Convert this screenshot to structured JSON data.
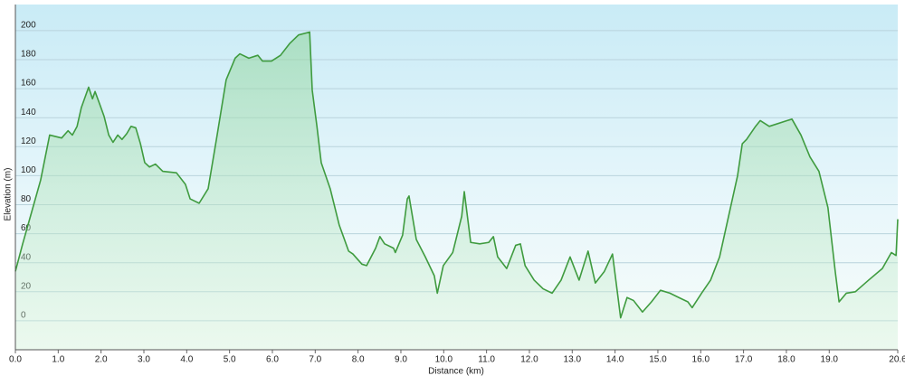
{
  "chart_data": {
    "type": "area",
    "x_label": "Distance  (km)",
    "y_label": "Elevation (m)",
    "color": "#3f9b3f",
    "grid": true,
    "xlim": [
      0,
      20.6
    ],
    "ylim": [
      -20,
      218
    ],
    "xticks": [
      {
        "value": 0,
        "label": "0.0"
      },
      {
        "value": 1,
        "label": "1.0"
      },
      {
        "value": 2,
        "label": "2.0"
      },
      {
        "value": 3,
        "label": "3.0"
      },
      {
        "value": 4,
        "label": "4.0"
      },
      {
        "value": 5,
        "label": "5.0"
      },
      {
        "value": 6,
        "label": "6.0"
      },
      {
        "value": 7,
        "label": "7.0"
      },
      {
        "value": 8,
        "label": "8.0"
      },
      {
        "value": 9,
        "label": "9.0"
      },
      {
        "value": 10,
        "label": "10.0"
      },
      {
        "value": 11,
        "label": "11.0"
      },
      {
        "value": 12,
        "label": "12.0"
      },
      {
        "value": 13,
        "label": "13.0"
      },
      {
        "value": 14,
        "label": "14.0"
      },
      {
        "value": 15,
        "label": "15.0"
      },
      {
        "value": 16,
        "label": "16.0"
      },
      {
        "value": 17,
        "label": "17.0"
      },
      {
        "value": 18,
        "label": "18.0"
      },
      {
        "value": 19,
        "label": "19.0"
      },
      20.6
    ],
    "yticks": [
      0,
      20,
      40,
      60,
      80,
      100,
      120,
      140,
      160,
      180,
      200
    ],
    "x": [
      0,
      0.17,
      0.38,
      0.59,
      0.8,
      1.08,
      1.23,
      1.33,
      1.44,
      1.54,
      1.71,
      1.8,
      1.86,
      1.96,
      2.07,
      2.18,
      2.28,
      2.39,
      2.49,
      2.6,
      2.7,
      2.81,
      2.92,
      3.02,
      3.13,
      3.27,
      3.44,
      3.76,
      3.97,
      4.08,
      4.29,
      4.5,
      4.71,
      4.92,
      5.13,
      5.24,
      5.45,
      5.66,
      5.77,
      5.98,
      6.19,
      6.4,
      6.61,
      6.87,
      6.93,
      7.04,
      7.14,
      7.35,
      7.56,
      7.78,
      7.88,
      8.09,
      8.2,
      8.41,
      8.51,
      8.62,
      8.83,
      8.87,
      9.04,
      9.15,
      9.19,
      9.36,
      9.57,
      9.78,
      9.85,
      9.99,
      10.21,
      10.42,
      10.48,
      10.63,
      10.84,
      11.05,
      11.16,
      11.26,
      11.47,
      11.68,
      11.79,
      11.9,
      12.11,
      12.32,
      12.53,
      12.74,
      12.95,
      13.16,
      13.37,
      13.54,
      13.75,
      13.94,
      14.07,
      14.13,
      14.28,
      14.43,
      14.64,
      14.85,
      15.06,
      15.28,
      15.49,
      15.7,
      15.8,
      16.02,
      16.23,
      16.44,
      16.65,
      16.86,
      16.97,
      17.07,
      17.28,
      17.39,
      17.6,
      18.02,
      18.13,
      18.34,
      18.55,
      18.76,
      18.97,
      19.14,
      19.23,
      19.4,
      19.61,
      19.92,
      20.24,
      20.45,
      20.56,
      20.6
    ],
    "values": [
      34,
      53,
      75,
      97,
      128,
      126,
      131,
      128,
      134,
      147,
      161,
      153,
      158,
      150,
      141,
      128,
      123,
      128,
      125,
      129,
      134,
      133,
      122,
      109,
      106,
      108,
      103,
      102,
      94,
      84,
      81,
      91,
      128,
      166,
      181,
      184,
      181,
      183,
      179,
      179,
      183,
      191,
      197,
      199,
      159,
      134,
      109,
      91,
      66,
      48,
      46,
      39,
      38,
      50,
      58,
      53,
      50,
      47,
      59,
      84,
      86,
      56,
      44,
      31,
      19,
      38,
      47,
      72,
      89,
      54,
      53,
      54,
      58,
      44,
      36,
      52,
      53,
      38,
      28,
      22,
      19,
      28,
      44,
      28,
      48,
      26,
      34,
      46,
      16,
      2,
      16,
      14,
      6,
      13,
      21,
      19,
      16,
      13,
      9,
      19,
      28,
      44,
      72,
      100,
      122,
      125,
      134,
      138,
      134,
      138,
      139,
      128,
      113,
      103,
      78,
      34,
      13,
      19,
      20,
      28,
      36,
      47,
      45,
      70
    ]
  }
}
